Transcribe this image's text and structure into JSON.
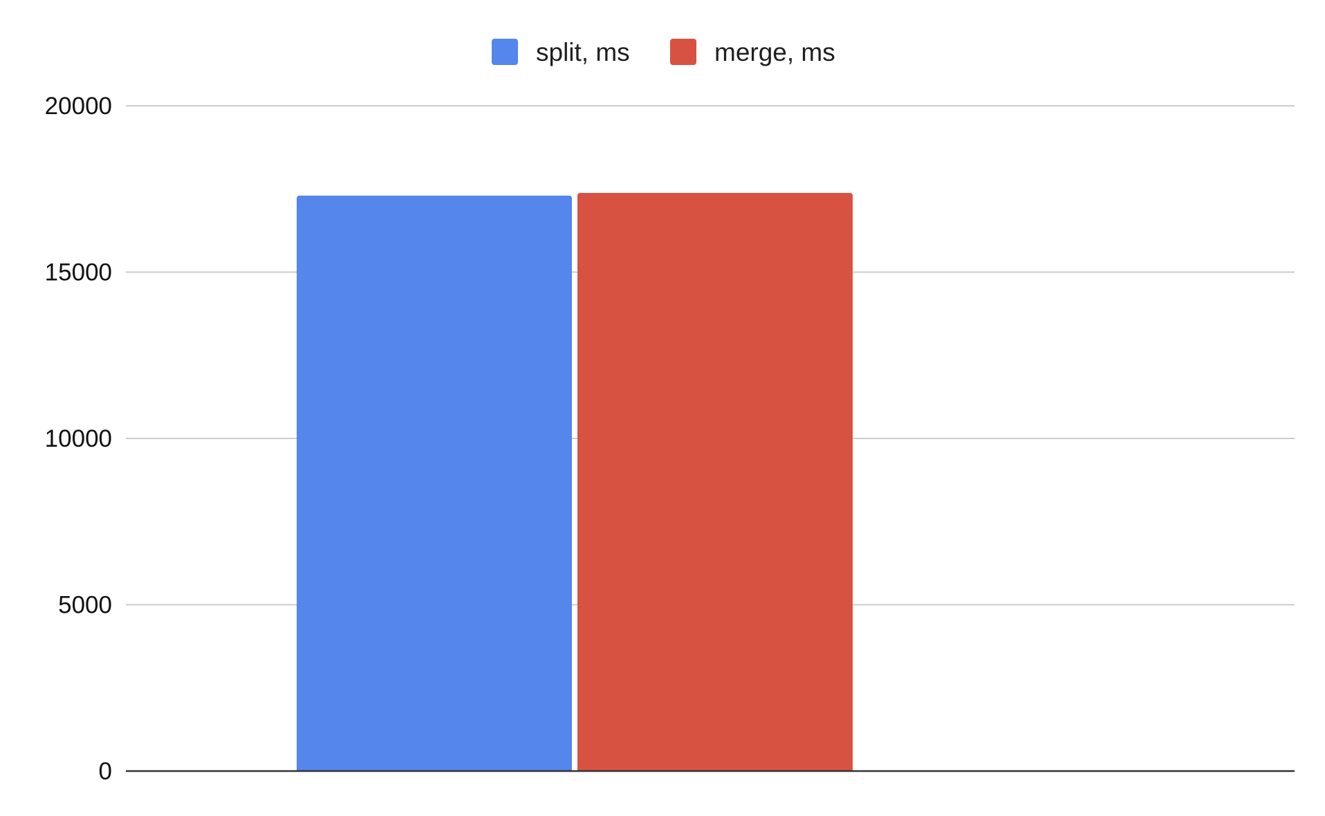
{
  "chart_data": {
    "type": "bar",
    "title": "",
    "xlabel": "",
    "ylabel": "",
    "categories": [
      ""
    ],
    "series": [
      {
        "name": "split, ms",
        "values": [
          17300
        ],
        "color": "#5486EB"
      },
      {
        "name": "merge, ms",
        "values": [
          17380
        ],
        "color": "#D85242"
      }
    ],
    "ylim": [
      0,
      20000
    ],
    "yticks": [
      "0",
      "5000",
      "10000",
      "15000",
      "20000"
    ],
    "ytick_values": [
      0,
      5000,
      10000,
      15000,
      20000
    ],
    "grid": true,
    "legend": "top-center",
    "colors": {
      "grid": "#CCCCCC",
      "axis": "#333333",
      "text": "#111111"
    }
  }
}
